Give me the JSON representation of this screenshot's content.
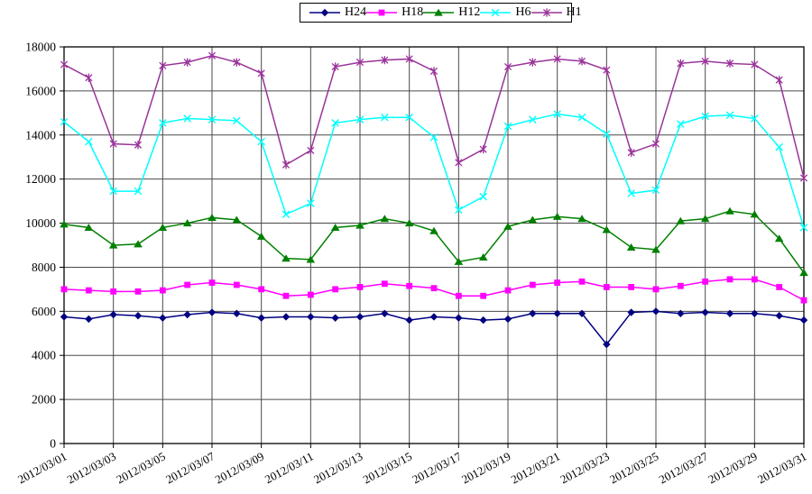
{
  "chart_data": {
    "type": "line",
    "title": "",
    "xlabel": "",
    "ylabel": "",
    "x": [
      "2012/03/01",
      "2012/03/02",
      "2012/03/03",
      "2012/03/04",
      "2012/03/05",
      "2012/03/06",
      "2012/03/07",
      "2012/03/08",
      "2012/03/09",
      "2012/03/10",
      "2012/03/11",
      "2012/03/12",
      "2012/03/13",
      "2012/03/14",
      "2012/03/15",
      "2012/03/16",
      "2012/03/17",
      "2012/03/18",
      "2012/03/19",
      "2012/03/20",
      "2012/03/21",
      "2012/03/22",
      "2012/03/23",
      "2012/03/24",
      "2012/03/25",
      "2012/03/26",
      "2012/03/27",
      "2012/03/28",
      "2012/03/29",
      "2012/03/30",
      "2012/03/31"
    ],
    "x_tick_every": 2,
    "ylim": [
      0,
      18000
    ],
    "ytick_step": 2000,
    "y_ticks": [
      0,
      2000,
      4000,
      6000,
      8000,
      10000,
      12000,
      14000,
      16000,
      18000
    ],
    "grid": "both",
    "legend_position": "top-center",
    "legend_order": [
      "H24",
      "H18",
      "H12",
      "H6",
      "H1"
    ],
    "series": [
      {
        "name": "H24",
        "color": "#000080",
        "marker": "diamond",
        "values": [
          5750,
          5650,
          5850,
          5800,
          5700,
          5850,
          5950,
          5900,
          5700,
          5750,
          5750,
          5700,
          5750,
          5900,
          5600,
          5750,
          5700,
          5600,
          5650,
          5900,
          5900,
          5900,
          4500,
          5950,
          6000,
          5900,
          5950,
          5900,
          5900,
          5800,
          5600
        ]
      },
      {
        "name": "H18",
        "color": "#FF00FF",
        "marker": "square",
        "values": [
          7000,
          6950,
          6900,
          6900,
          6950,
          7200,
          7300,
          7200,
          7000,
          6700,
          6750,
          7000,
          7100,
          7250,
          7150,
          7050,
          6700,
          6700,
          6950,
          7200,
          7300,
          7350,
          7100,
          7100,
          7000,
          7150,
          7350,
          7450,
          7450,
          7100,
          6500
        ]
      },
      {
        "name": "H12",
        "color": "#008000",
        "marker": "triangle",
        "values": [
          9950,
          9800,
          9000,
          9050,
          9800,
          10000,
          10250,
          10150,
          9400,
          8400,
          8350,
          9800,
          9900,
          10200,
          10000,
          9650,
          8250,
          8450,
          9850,
          10150,
          10300,
          10200,
          9700,
          8900,
          8800,
          10100,
          10200,
          10550,
          10400,
          9300,
          7750
        ]
      },
      {
        "name": "H6",
        "color": "#00FFFF",
        "marker": "x",
        "values": [
          14600,
          13700,
          11450,
          11450,
          14550,
          14750,
          14700,
          14650,
          13700,
          10400,
          10900,
          14550,
          14700,
          14800,
          14800,
          13900,
          10600,
          11200,
          14400,
          14700,
          14950,
          14800,
          14050,
          11350,
          11500,
          14500,
          14850,
          14900,
          14750,
          13450,
          9800
        ]
      },
      {
        "name": "H1",
        "color": "#993399",
        "marker": "asterisk",
        "values": [
          17200,
          16600,
          13600,
          13550,
          17150,
          17300,
          17600,
          17300,
          16800,
          12650,
          13300,
          17100,
          17300,
          17400,
          17450,
          16900,
          12750,
          13350,
          17100,
          17300,
          17450,
          17350,
          16950,
          13200,
          13600,
          17250,
          17350,
          17250,
          17200,
          16500,
          12050
        ]
      }
    ]
  },
  "colors": {
    "background": "#FFFFFF",
    "gridline": "#4A4A4A",
    "axis": "#000000",
    "tick_text": "#000000"
  }
}
